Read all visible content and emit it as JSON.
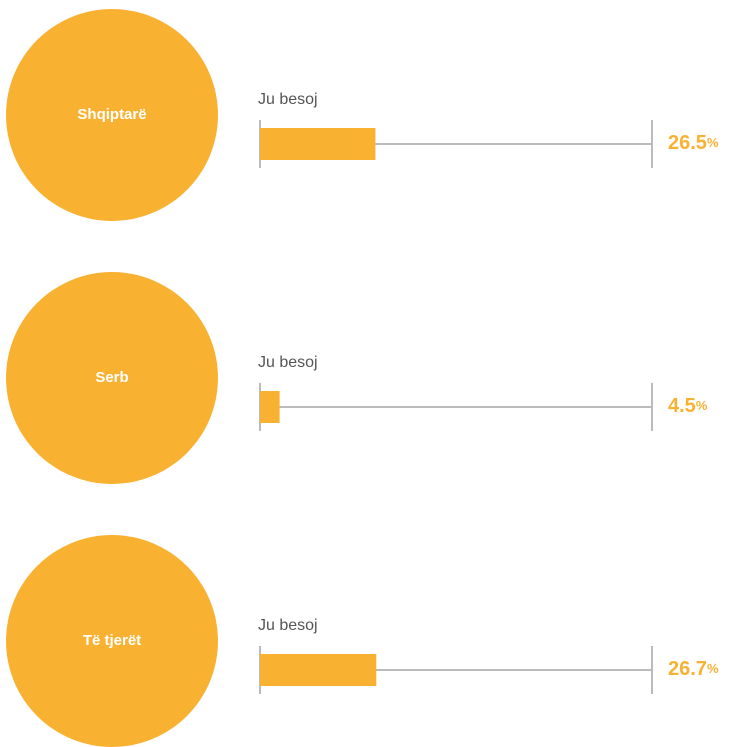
{
  "chart_data": {
    "type": "bar",
    "orientation": "horizontal",
    "categories": [
      "Shqiptarë",
      "Serb",
      "Të tjerët"
    ],
    "bar_label": "Ju besoj",
    "values": [
      26.5,
      4.5,
      26.7
    ],
    "value_labels": [
      "26.5",
      "4.5",
      "26.7"
    ],
    "unit": "%",
    "color": "#f9b131",
    "xlim": [
      0,
      90
    ]
  }
}
